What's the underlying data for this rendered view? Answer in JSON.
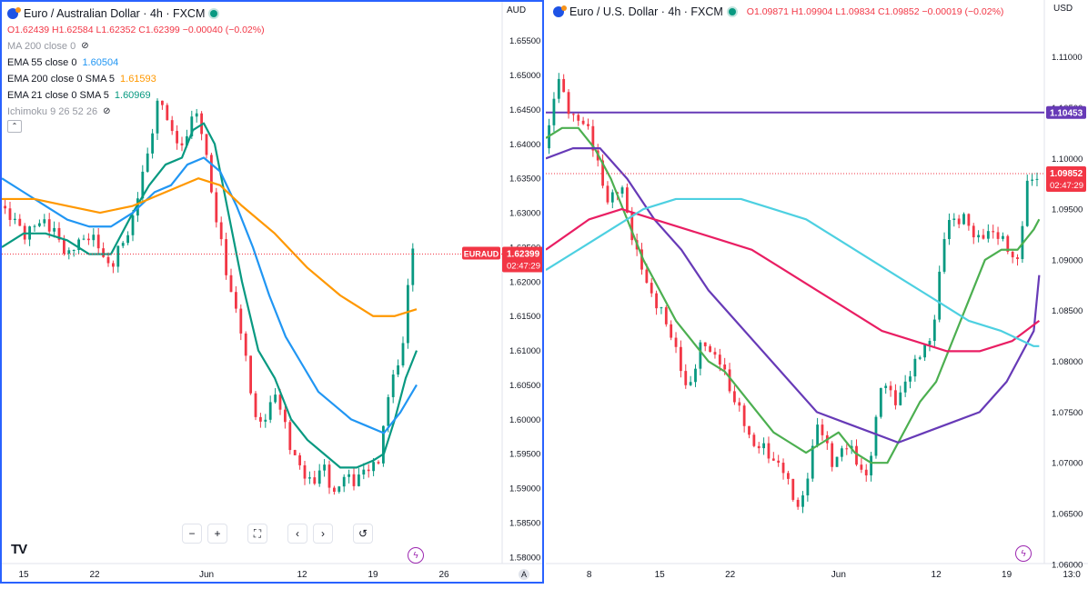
{
  "left": {
    "title": "Euro / Australian Dollar · 4h · FXCM",
    "ohlc": {
      "o": "O1.62439",
      "h": "H1.62584",
      "l": "L1.62352",
      "c": "C1.62399",
      "chg": "−0.00040 (−0.02%)"
    },
    "currency": "AUD",
    "indicators": [
      {
        "label": "MA 200 close 0",
        "value": "",
        "color": "#9598a1",
        "hidden": true
      },
      {
        "label": "EMA 55 close 0",
        "value": "1.60504",
        "color": "#2196f3"
      },
      {
        "label": "EMA 200 close 0 SMA 5",
        "value": "1.61593",
        "color": "#ff9800"
      },
      {
        "label": "EMA 21 close 0 SMA 5",
        "value": "1.60969",
        "color": "#089981"
      },
      {
        "label": "Ichimoku 9 26 52 26",
        "value": "",
        "color": "#9598a1",
        "hidden": true
      }
    ],
    "price_label": {
      "symbol": "EURAUD",
      "price": "1.62399",
      "countdown": "02:47:29",
      "color": "#f23645"
    },
    "x_ticks": [
      "15",
      "22",
      "Jun",
      "12",
      "19",
      "26"
    ],
    "auto_label": "A"
  },
  "right": {
    "title": "Euro / U.S. Dollar · 4h · FXCM",
    "ohlc": {
      "o": "O1.09871",
      "h": "H1.09904",
      "l": "L1.09834",
      "c": "C1.09852",
      "chg": "−0.00019 (−0.02%)"
    },
    "currency": "USD",
    "hline_label": {
      "price": "1.10453",
      "color": "#673ab7"
    },
    "price_label": {
      "price": "1.09852",
      "countdown": "02:47:29",
      "color": "#f23645"
    },
    "x_ticks": [
      "8",
      "15",
      "22",
      "Jun",
      "12",
      "19",
      "13:0"
    ]
  },
  "toolbar": {
    "zoom_out": "−",
    "zoom_in": "+",
    "fullscreen": "⛶",
    "prev": "‹",
    "next": "›",
    "reset": "↺"
  },
  "tv_logo": "TV",
  "chart_data": [
    {
      "type": "line",
      "title": "Euro / Australian Dollar · 4h · FXCM",
      "ylim": [
        1.578,
        1.658
      ],
      "y_ticks": [
        1.58,
        1.585,
        1.59,
        1.595,
        1.6,
        1.605,
        1.61,
        1.615,
        1.62,
        1.625,
        1.63,
        1.635,
        1.64,
        1.645,
        1.65,
        1.655
      ],
      "grid": false,
      "x_range": [
        0,
        100
      ],
      "x_ticks": [
        {
          "x": 4,
          "label": "15"
        },
        {
          "x": 17,
          "label": "22"
        },
        {
          "x": 37.5,
          "label": "Jun"
        },
        {
          "x": 55,
          "label": "12"
        },
        {
          "x": 68,
          "label": "19"
        },
        {
          "x": 81,
          "label": "26"
        }
      ],
      "series": [
        {
          "name": "Price",
          "color": "#f23645",
          "x": [
            0,
            4,
            8,
            12,
            16,
            20,
            24,
            27,
            29,
            31,
            33,
            35,
            37,
            39,
            41,
            44,
            47,
            50,
            53,
            55,
            57,
            59,
            61,
            63,
            65,
            67,
            69,
            70,
            72,
            73,
            74,
            75,
            76
          ],
          "values": [
            1.631,
            1.627,
            1.629,
            1.624,
            1.627,
            1.622,
            1.629,
            1.64,
            1.647,
            1.642,
            1.639,
            1.645,
            1.641,
            1.63,
            1.622,
            1.612,
            1.598,
            1.604,
            1.596,
            1.592,
            1.591,
            1.593,
            1.589,
            1.592,
            1.591,
            1.593,
            1.594,
            1.599,
            1.609,
            1.606,
            1.616,
            1.625,
            1.624
          ]
        },
        {
          "name": "EMA 21",
          "color": "#089981",
          "x": [
            0,
            4,
            8,
            12,
            16,
            20,
            24,
            27,
            30,
            33,
            35,
            37,
            39,
            41,
            44,
            47,
            50,
            53,
            56,
            59,
            62,
            65,
            68,
            70,
            72,
            74,
            76
          ],
          "values": [
            1.625,
            1.627,
            1.627,
            1.626,
            1.624,
            1.624,
            1.63,
            1.634,
            1.637,
            1.638,
            1.642,
            1.643,
            1.64,
            1.632,
            1.62,
            1.61,
            1.606,
            1.6,
            1.597,
            1.595,
            1.593,
            1.593,
            1.594,
            1.595,
            1.6,
            1.606,
            1.61
          ]
        },
        {
          "name": "EMA 55",
          "color": "#2196f3",
          "x": [
            0,
            4,
            8,
            12,
            16,
            20,
            24,
            28,
            31,
            34,
            37,
            40,
            43,
            46,
            49,
            52,
            55,
            58,
            61,
            64,
            67,
            70,
            73,
            76
          ],
          "values": [
            1.635,
            1.633,
            1.631,
            1.629,
            1.628,
            1.628,
            1.63,
            1.633,
            1.634,
            1.637,
            1.638,
            1.636,
            1.631,
            1.625,
            1.618,
            1.612,
            1.608,
            1.604,
            1.602,
            1.6,
            1.599,
            1.598,
            1.601,
            1.605
          ]
        },
        {
          "name": "EMA 200",
          "color": "#ff9800",
          "x": [
            0,
            6,
            12,
            18,
            24,
            30,
            36,
            40,
            44,
            50,
            56,
            62,
            68,
            72,
            76
          ],
          "values": [
            1.632,
            1.632,
            1.631,
            1.63,
            1.631,
            1.633,
            1.635,
            1.634,
            1.631,
            1.627,
            1.622,
            1.618,
            1.615,
            1.615,
            1.616
          ]
        }
      ]
    },
    {
      "type": "line",
      "title": "Euro / U.S. Dollar · 4h · FXCM",
      "ylim": [
        1.059,
        1.114
      ],
      "y_ticks": [
        1.06,
        1.065,
        1.07,
        1.075,
        1.08,
        1.085,
        1.09,
        1.095,
        1.1,
        1.105,
        1.11
      ],
      "grid": false,
      "x_range": [
        0,
        100
      ],
      "x_ticks": [
        {
          "x": 8,
          "label": "8"
        },
        {
          "x": 21,
          "label": "15"
        },
        {
          "x": 34,
          "label": "22"
        },
        {
          "x": 54,
          "label": "Jun"
        },
        {
          "x": 72,
          "label": "12"
        },
        {
          "x": 85,
          "label": "19"
        },
        {
          "x": 97,
          "label": "13:0"
        }
      ],
      "hline": 1.10453,
      "series": [
        {
          "name": "Price",
          "color": "#f23645",
          "x": [
            0,
            2,
            5,
            8,
            11,
            14,
            17,
            20,
            23,
            26,
            29,
            32,
            35,
            38,
            41,
            44,
            47,
            50,
            53,
            56,
            59,
            62,
            65,
            68,
            71,
            74,
            77,
            80,
            83,
            85,
            87,
            89,
            91
          ],
          "values": [
            1.101,
            1.108,
            1.104,
            1.103,
            1.096,
            1.097,
            1.09,
            1.086,
            1.083,
            1.077,
            1.082,
            1.08,
            1.076,
            1.072,
            1.071,
            1.069,
            1.065,
            1.074,
            1.07,
            1.072,
            1.068,
            1.078,
            1.076,
            1.08,
            1.082,
            1.094,
            1.094,
            1.092,
            1.093,
            1.091,
            1.09,
            1.098,
            1.0985
          ]
        },
        {
          "name": "Green MA",
          "color": "#4caf50",
          "x": [
            0,
            3,
            6,
            9,
            12,
            15,
            18,
            21,
            24,
            27,
            30,
            33,
            36,
            39,
            42,
            45,
            48,
            51,
            54,
            57,
            60,
            63,
            66,
            69,
            72,
            75,
            78,
            81,
            84,
            87,
            90,
            91
          ],
          "values": [
            1.102,
            1.103,
            1.103,
            1.101,
            1.098,
            1.094,
            1.09,
            1.087,
            1.084,
            1.082,
            1.08,
            1.079,
            1.077,
            1.075,
            1.073,
            1.072,
            1.071,
            1.072,
            1.073,
            1.071,
            1.07,
            1.07,
            1.073,
            1.076,
            1.078,
            1.082,
            1.086,
            1.09,
            1.091,
            1.091,
            1.093,
            1.094
          ]
        },
        {
          "name": "Purple MA",
          "color": "#673ab7",
          "x": [
            0,
            5,
            10,
            15,
            20,
            25,
            30,
            35,
            40,
            45,
            50,
            55,
            60,
            65,
            70,
            75,
            80,
            85,
            90,
            91
          ],
          "values": [
            1.1,
            1.101,
            1.101,
            1.098,
            1.094,
            1.091,
            1.087,
            1.084,
            1.081,
            1.078,
            1.075,
            1.074,
            1.073,
            1.072,
            1.073,
            1.074,
            1.075,
            1.078,
            1.083,
            1.0885
          ]
        },
        {
          "name": "Crimson MA",
          "color": "#e91e63",
          "x": [
            0,
            8,
            14,
            20,
            26,
            32,
            38,
            44,
            50,
            56,
            62,
            68,
            74,
            80,
            86,
            91
          ],
          "values": [
            1.091,
            1.094,
            1.095,
            1.094,
            1.093,
            1.092,
            1.091,
            1.089,
            1.087,
            1.085,
            1.083,
            1.082,
            1.081,
            1.081,
            1.082,
            1.084
          ]
        },
        {
          "name": "Cyan MA",
          "color": "#4dd0e1",
          "x": [
            0,
            6,
            12,
            18,
            24,
            30,
            36,
            42,
            48,
            54,
            60,
            66,
            72,
            78,
            84,
            90,
            91
          ],
          "values": [
            1.089,
            1.091,
            1.093,
            1.095,
            1.096,
            1.096,
            1.096,
            1.095,
            1.094,
            1.092,
            1.09,
            1.088,
            1.086,
            1.084,
            1.083,
            1.0815,
            1.0815
          ]
        }
      ]
    }
  ]
}
